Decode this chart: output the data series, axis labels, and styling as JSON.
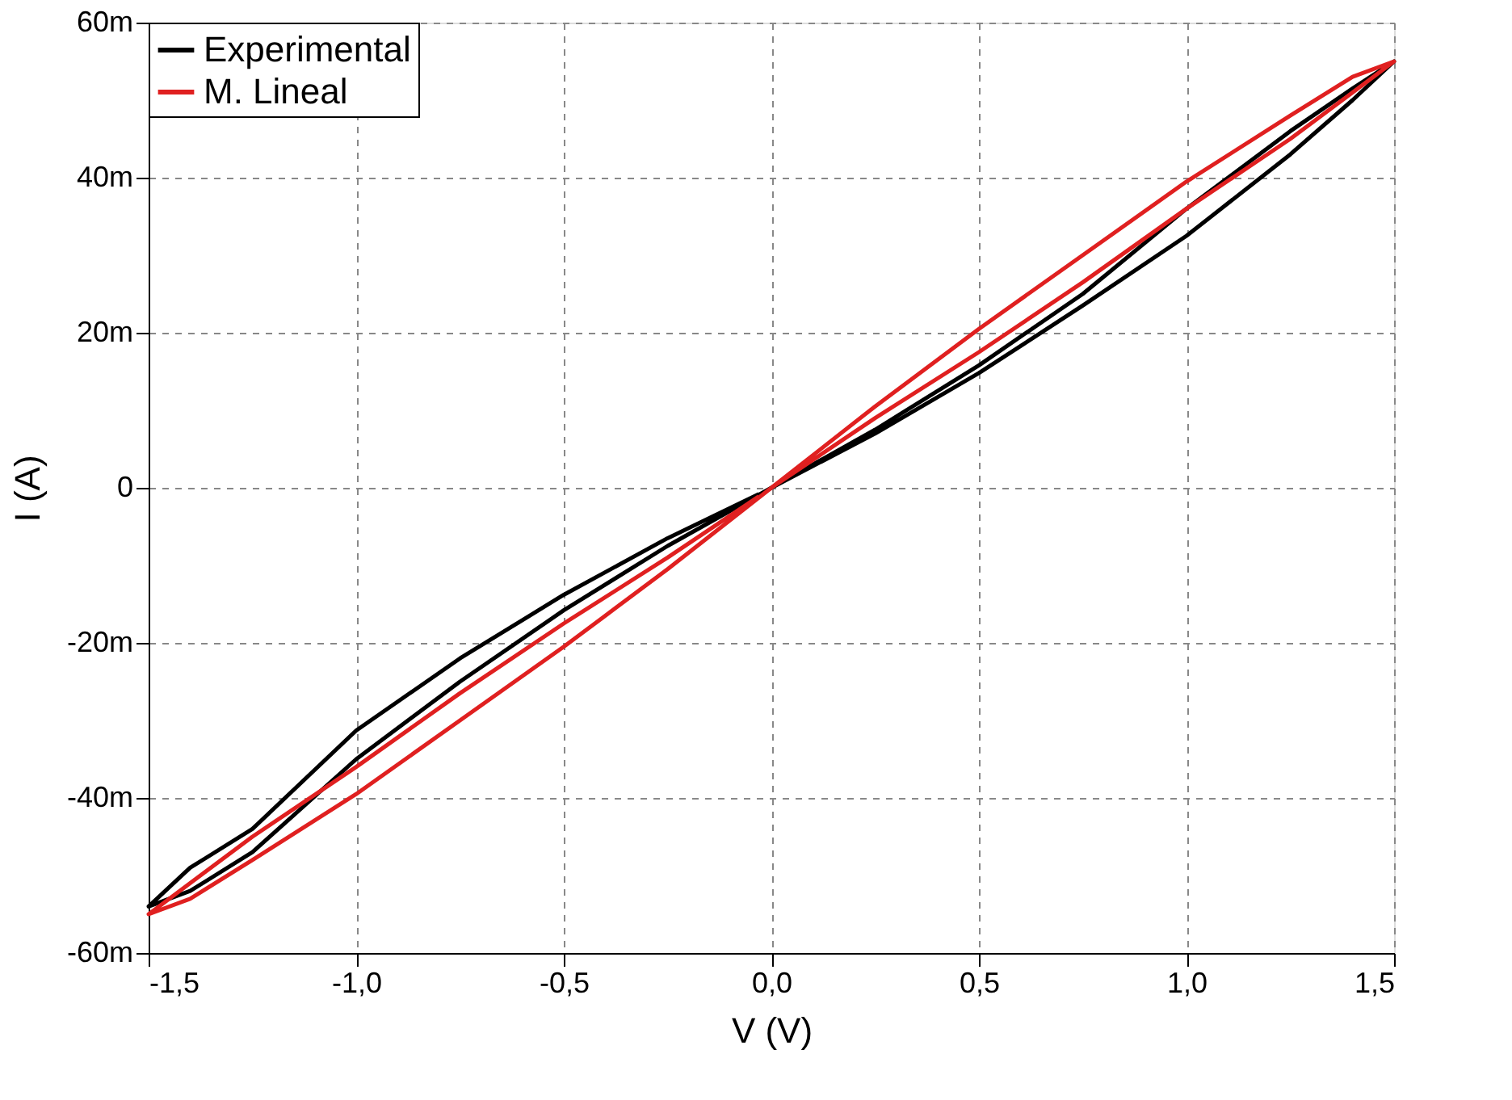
{
  "chart_data": {
    "type": "line",
    "xlabel": "V (V)",
    "ylabel": "I (A)",
    "xlim": [
      -1.5,
      1.5
    ],
    "ylim": [
      -60,
      60
    ],
    "xticks": [
      {
        "value": -1.5,
        "label": "-1,5"
      },
      {
        "value": -1.0,
        "label": "-1,0"
      },
      {
        "value": -0.5,
        "label": "-0,5"
      },
      {
        "value": 0,
        "label": "0,0"
      },
      {
        "value": 0.5,
        "label": "0,5"
      },
      {
        "value": 1.0,
        "label": "1,0"
      },
      {
        "value": 1.5,
        "label": "1,5"
      }
    ],
    "yticks": [
      {
        "value": -60,
        "label": "-60m"
      },
      {
        "value": -40,
        "label": "-40m"
      },
      {
        "value": -20,
        "label": "-20m"
      },
      0,
      {
        "value": 20,
        "label": "20m"
      },
      {
        "value": 40,
        "label": "40m"
      },
      {
        "value": 60,
        "label": "60m"
      }
    ],
    "grid": true,
    "legend": "top left",
    "line_style": "solid",
    "series": [
      {
        "name": "Experimental",
        "color": "#000000",
        "x": [
          0,
          0.25,
          0.5,
          0.75,
          1.0,
          1.25,
          1.4,
          1.5,
          1.4,
          1.25,
          1.0,
          0.75,
          0.5,
          0.25,
          0,
          -0.25,
          -0.5,
          -0.75,
          -1.0,
          -1.25,
          -1.4,
          -1.5,
          -1.4,
          -1.25,
          -1.0,
          -0.75,
          -0.5,
          -0.25,
          -0.03
        ],
        "values": [
          0,
          7.5,
          15.8,
          25,
          36,
          46,
          51.5,
          55,
          50,
          43,
          32.5,
          23.5,
          14.8,
          7,
          0,
          -7.5,
          -15.8,
          -25,
          -35,
          -47,
          -52,
          -54,
          -49,
          -44,
          -31.3,
          -22,
          -13.8,
          -6.5,
          -0.8
        ]
      },
      {
        "name": "M. Lineal",
        "color": "#e02020",
        "x": [
          0,
          0.25,
          0.5,
          0.75,
          1.0,
          1.25,
          1.4,
          1.5,
          1.4,
          1.25,
          1.0,
          0.75,
          0.5,
          0.25,
          0,
          -0.25,
          -0.5,
          -0.75,
          -1.0,
          -1.25,
          -1.4,
          -1.5,
          -1.4,
          -1.25,
          -1.0,
          -0.75,
          -0.5,
          -0.25,
          -0.03
        ],
        "values": [
          0,
          10.5,
          20.5,
          30,
          39.5,
          48,
          53,
          55,
          51,
          45,
          36,
          26.5,
          17.5,
          9,
          0,
          -10.5,
          -20.5,
          -30,
          -39.5,
          -48,
          -53,
          -55,
          -51,
          -45,
          -36,
          -26.5,
          -17.5,
          -9,
          -1.1
        ]
      }
    ]
  }
}
